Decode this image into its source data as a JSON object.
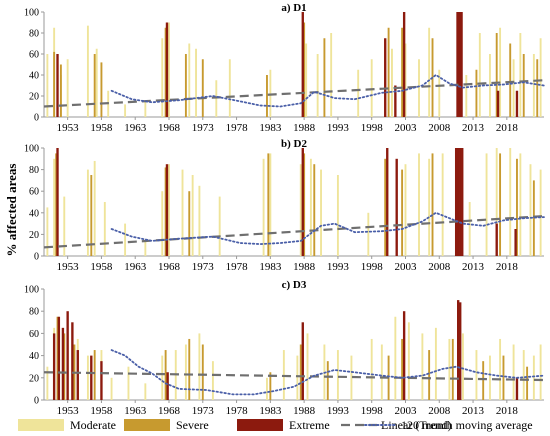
{
  "y_axis_title": "% affected areas",
  "colors": {
    "moderate": "#EFE49A",
    "severe": "#C79A2F",
    "extreme": "#8C1A0E",
    "trend": "#6F6F6F",
    "moving_average": "#4A5FA8",
    "axis": "#9A9A9A",
    "highlight_pink": "#F6C6DB",
    "highlight_green": "#B8E0A0"
  },
  "legend": {
    "position": "bottom",
    "items": [
      {
        "label": "Moderate",
        "kind": "bar",
        "color": "#EFE49A"
      },
      {
        "label": "Severe",
        "kind": "bar",
        "color": "#C79A2F"
      },
      {
        "label": "Extreme",
        "kind": "bar",
        "color": "#8C1A0E"
      },
      {
        "label": "Linear (Trend)",
        "kind": "dash",
        "color": "#6F6F6F"
      },
      {
        "label": "120 month moving average",
        "kind": "dot",
        "color": "#4A5FA8"
      }
    ]
  },
  "chart_data": [
    {
      "type": "bar",
      "title": "a) D1",
      "ylim": [
        0,
        100
      ],
      "yticks": [
        0,
        20,
        40,
        60,
        80,
        100
      ],
      "xlim": [
        1950,
        2024
      ],
      "xticks": [
        1953,
        1958,
        1963,
        1968,
        1973,
        1978,
        1983,
        1988,
        1993,
        1998,
        2003,
        2008,
        2013,
        2018
      ],
      "series": [
        {
          "name": "Moderate",
          "x": [
            1950.5,
            1951.5,
            1952.5,
            1953.5,
            1956.5,
            1957.8,
            1959.5,
            1962.0,
            1965.0,
            1967.5,
            1968.5,
            1971.5,
            1972.5,
            1975.5,
            1977.5,
            1983.5,
            1988.8,
            1990.5,
            1992.5,
            1996.5,
            1998.5,
            2001.5,
            2003.5,
            2005.5,
            2007.0,
            2008.5,
            2012.5,
            2014.5,
            2016.0,
            2017.5,
            2019.5,
            2020.5,
            2022.5,
            2023.5
          ],
          "values": [
            60,
            85,
            40,
            55,
            87,
            65,
            25,
            12,
            15,
            75,
            90,
            70,
            65,
            35,
            55,
            45,
            70,
            60,
            80,
            45,
            55,
            65,
            70,
            55,
            85,
            45,
            40,
            80,
            60,
            85,
            55,
            80,
            60,
            75
          ]
        },
        {
          "name": "Severe",
          "x": [
            1951.5,
            1952.5,
            1957.5,
            1958.5,
            1968.0,
            1971.0,
            1973.5,
            1983.0,
            1988.5,
            1991.5,
            2001.0,
            2003.0,
            2007.5,
            2014.0,
            2017.0,
            2019.0,
            2021.0,
            2023.0
          ],
          "values": [
            62,
            50,
            60,
            52,
            85,
            60,
            55,
            40,
            90,
            75,
            85,
            85,
            75,
            45,
            80,
            70,
            60,
            55
          ]
        },
        {
          "name": "Extreme",
          "x": [
            1952.0,
            1968.2,
            1988.3,
            2000.5,
            2002.0,
            2003.3,
            2011.2,
            2011.5,
            2011.8,
            2017.2,
            2020.0
          ],
          "values": [
            60,
            90,
            100,
            75,
            30,
            100,
            100,
            100,
            100,
            25,
            25
          ]
        },
        {
          "name": "Linear (Trend)",
          "x": [
            1950,
            2024
          ],
          "values": [
            10,
            35
          ]
        },
        {
          "name": "120 month moving average",
          "x": [
            1960,
            1963,
            1966,
            1970,
            1975,
            1979,
            1982,
            1985,
            1988,
            1990,
            1993,
            1996,
            2000,
            2003,
            2006,
            2008,
            2010,
            2012,
            2015,
            2018,
            2021,
            2024
          ],
          "values": [
            25,
            17,
            14,
            16,
            20,
            15,
            11,
            10,
            13,
            24,
            18,
            17,
            23,
            25,
            30,
            40,
            32,
            28,
            30,
            31,
            33,
            30
          ]
        }
      ]
    },
    {
      "type": "bar",
      "title": "b) D2",
      "ylim": [
        0,
        100
      ],
      "yticks": [
        0,
        20,
        40,
        60,
        80,
        100
      ],
      "xlim": [
        1950,
        2024
      ],
      "xticks": [
        1953,
        1958,
        1963,
        1968,
        1973,
        1978,
        1983,
        1988,
        1993,
        1998,
        2003,
        2008,
        2013,
        2018
      ],
      "series": [
        {
          "name": "Moderate",
          "x": [
            1950.5,
            1951.5,
            1953.0,
            1956.5,
            1957.5,
            1959.0,
            1962.0,
            1965.0,
            1967.5,
            1968.5,
            1970.5,
            1972.0,
            1973.0,
            1976.0,
            1982.5,
            1983.5,
            1988.0,
            1989.5,
            1991.0,
            1993.5,
            1998.0,
            2003.5,
            2005.5,
            2007.0,
            2009.0,
            2013.0,
            2015.5,
            2017.0,
            2019.0,
            2020.5,
            2022.0,
            2023.5
          ],
          "values": [
            45,
            90,
            55,
            80,
            88,
            50,
            30,
            15,
            60,
            85,
            80,
            75,
            65,
            55,
            90,
            95,
            85,
            90,
            80,
            75,
            40,
            85,
            95,
            90,
            95,
            50,
            95,
            100,
            100,
            95,
            85,
            80
          ]
        },
        {
          "name": "Severe",
          "x": [
            1951.8,
            1957.0,
            1968.0,
            1971.5,
            1983.2,
            1988.5,
            1990.0,
            2000.5,
            2003.0,
            2007.5,
            2017.5,
            2020.0,
            2022.5
          ],
          "values": [
            95,
            75,
            82,
            60,
            95,
            95,
            85,
            90,
            80,
            95,
            95,
            90,
            70
          ]
        },
        {
          "name": "Extreme",
          "x": [
            1952.0,
            1968.2,
            1988.3,
            2000.8,
            2002.2,
            2011.0,
            2011.3,
            2011.6,
            2011.9,
            2017.0,
            2019.8
          ],
          "values": [
            100,
            85,
            100,
            100,
            90,
            100,
            100,
            100,
            100,
            30,
            25
          ]
        },
        {
          "name": "Linear (Trend)",
          "x": [
            1950,
            2024
          ],
          "values": [
            8,
            37
          ]
        },
        {
          "name": "120 month moving average",
          "x": [
            1960,
            1963,
            1966,
            1970,
            1975,
            1979,
            1982,
            1985,
            1988,
            1991,
            1993,
            1996,
            2000,
            2003,
            2006,
            2008,
            2010,
            2012,
            2015,
            2018,
            2021,
            2024
          ],
          "values": [
            25,
            18,
            14,
            16,
            18,
            12,
            11,
            12,
            14,
            28,
            30,
            22,
            23,
            25,
            32,
            40,
            35,
            30,
            28,
            33,
            35,
            36
          ]
        }
      ]
    },
    {
      "type": "bar",
      "title": "c) D3",
      "ylim": [
        0,
        100
      ],
      "yticks": [
        0,
        20,
        40,
        60,
        80,
        100
      ],
      "xlim": [
        1950,
        2024
      ],
      "xticks": [
        1953,
        1958,
        1963,
        1968,
        1973,
        1978,
        1983,
        1988,
        1993,
        1998,
        2003,
        2008,
        2013,
        2018
      ],
      "series": [
        {
          "name": "Moderate",
          "x": [
            1950.5,
            1951.5,
            1953.5,
            1955.0,
            1956.5,
            1958.5,
            1960.0,
            1962.5,
            1965.0,
            1967.5,
            1969.5,
            1971.0,
            1973.0,
            1975.0,
            1983.0,
            1985.5,
            1987.5,
            1989.0,
            1991.5,
            1993.5,
            1995.5,
            1998.5,
            2000.0,
            2002.0,
            2004.0,
            2006.0,
            2008.0,
            2010.0,
            2012.0,
            2014.0,
            2016.0,
            2017.5,
            2019.5,
            2021.0,
            2022.5,
            2023.5
          ],
          "values": [
            30,
            65,
            50,
            55,
            40,
            45,
            20,
            30,
            15,
            40,
            45,
            50,
            60,
            35,
            20,
            45,
            40,
            60,
            50,
            45,
            40,
            55,
            50,
            75,
            70,
            60,
            65,
            55,
            60,
            45,
            40,
            55,
            50,
            45,
            40,
            50
          ]
        },
        {
          "name": "Severe",
          "x": [
            1952.0,
            1953.0,
            1954.5,
            1957.5,
            1968.0,
            1971.5,
            1973.5,
            1983.5,
            1988.0,
            1992.0,
            2001.0,
            2003.0,
            2007.0,
            2010.5,
            2015.0,
            2018.0,
            2021.5
          ],
          "values": [
            75,
            60,
            50,
            45,
            45,
            55,
            50,
            25,
            50,
            35,
            40,
            55,
            45,
            55,
            35,
            40,
            30
          ]
        },
        {
          "name": "Extreme",
          "x": [
            1951.5,
            1952.2,
            1952.8,
            1953.5,
            1954.2,
            1955.0,
            1957.0,
            1958.5,
            1968.3,
            1988.3,
            2003.3,
            2011.3,
            2011.6,
            2020.0
          ],
          "values": [
            60,
            75,
            65,
            80,
            70,
            45,
            40,
            35,
            25,
            70,
            80,
            90,
            88,
            20
          ]
        },
        {
          "name": "Linear (Trend)",
          "x": [
            1950,
            2024
          ],
          "values": [
            25,
            18
          ]
        },
        {
          "name": "120 month moving average",
          "x": [
            1960,
            1962,
            1964,
            1966,
            1968,
            1970,
            1974,
            1978,
            1981,
            1984,
            1987,
            1990,
            1993,
            1996,
            2000,
            2003,
            2006,
            2009,
            2011,
            2014,
            2017,
            2020,
            2024
          ],
          "values": [
            45,
            40,
            30,
            24,
            15,
            10,
            9,
            5,
            5,
            8,
            12,
            22,
            27,
            25,
            22,
            20,
            22,
            28,
            30,
            25,
            22,
            20,
            22
          ]
        }
      ]
    }
  ]
}
